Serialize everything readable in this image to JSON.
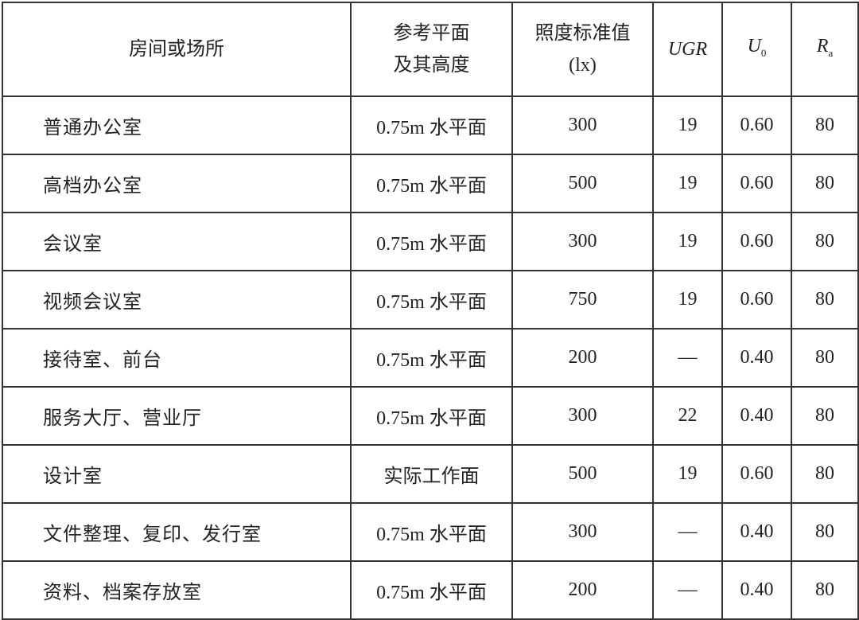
{
  "table": {
    "headers": {
      "room": "房间或场所",
      "plane_line1": "参考平面",
      "plane_line2": "及其高度",
      "lux_line1": "照度标准值",
      "lux_line2": "(lx)",
      "ugr": "UGR",
      "u0_main": "U",
      "u0_sub": "0",
      "ra_main": "R",
      "ra_sub": "a"
    },
    "rows": [
      {
        "room": "普通办公室",
        "plane": "0.75m 水平面",
        "lux": "300",
        "ugr": "19",
        "u0": "0.60",
        "ra": "80"
      },
      {
        "room": "高档办公室",
        "plane": "0.75m 水平面",
        "lux": "500",
        "ugr": "19",
        "u0": "0.60",
        "ra": "80"
      },
      {
        "room": "会议室",
        "plane": "0.75m 水平面",
        "lux": "300",
        "ugr": "19",
        "u0": "0.60",
        "ra": "80"
      },
      {
        "room": "视频会议室",
        "plane": "0.75m 水平面",
        "lux": "750",
        "ugr": "19",
        "u0": "0.60",
        "ra": "80"
      },
      {
        "room": "接待室、前台",
        "plane": "0.75m 水平面",
        "lux": "200",
        "ugr": "—",
        "u0": "0.40",
        "ra": "80"
      },
      {
        "room": "服务大厅、营业厅",
        "plane": "0.75m 水平面",
        "lux": "300",
        "ugr": "22",
        "u0": "0.40",
        "ra": "80"
      },
      {
        "room": "设计室",
        "plane": "实际工作面",
        "lux": "500",
        "ugr": "19",
        "u0": "0.60",
        "ra": "80"
      },
      {
        "room": "文件整理、复印、发行室",
        "plane": "0.75m 水平面",
        "lux": "300",
        "ugr": "—",
        "u0": "0.40",
        "ra": "80"
      },
      {
        "room": "资料、档案存放室",
        "plane": "0.75m 水平面",
        "lux": "200",
        "ugr": "—",
        "u0": "0.40",
        "ra": "80"
      }
    ]
  }
}
